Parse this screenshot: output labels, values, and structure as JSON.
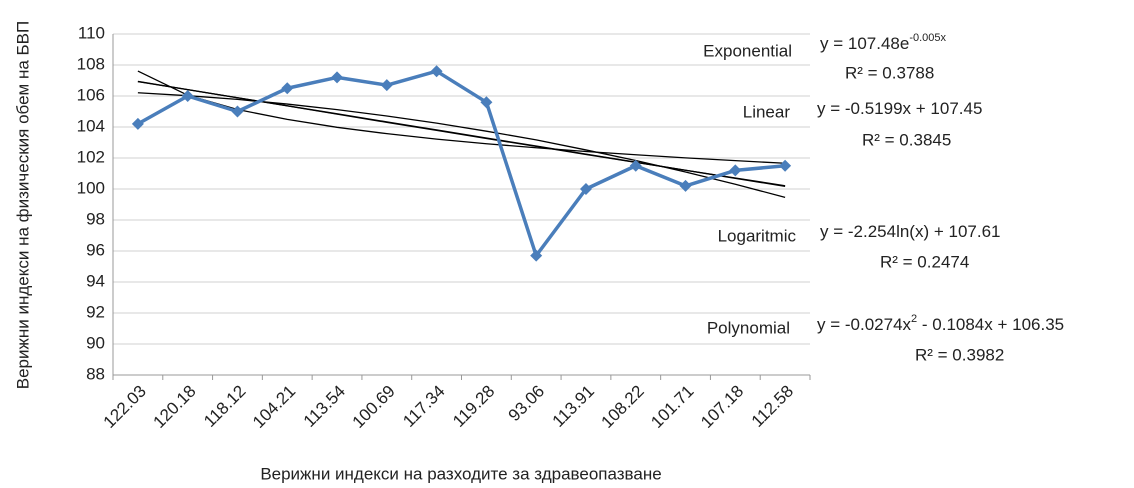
{
  "chart_data": {
    "type": "line",
    "xlabel": "Верижни индекси на разходите за здравеопазване",
    "ylabel": "Верижни индекси на физическия обем на БВП",
    "categories": [
      "122.03",
      "120.18",
      "118.12",
      "104.21",
      "113.54",
      "100.69",
      "117.34",
      "119.28",
      "93.06",
      "113.91",
      "108.22",
      "101.71",
      "107.18",
      "112.58"
    ],
    "series": [
      {
        "color": "#4a7ebb",
        "values": [
          104.2,
          106.0,
          105.0,
          106.5,
          107.2,
          106.7,
          107.6,
          105.6,
          95.7,
          100.0,
          101.5,
          100.2,
          101.2,
          101.5
        ]
      },
      {
        "name": "Exponential",
        "color": "#000000",
        "equation": [
          "y = 107.48e",
          "-0.005x"
        ],
        "r2": "R² = 0.3788",
        "values": [
          106.94,
          106.41,
          105.89,
          105.36,
          104.83,
          104.3,
          103.78,
          103.26,
          102.75,
          102.23,
          101.72,
          101.21,
          100.71,
          100.21
        ]
      },
      {
        "name": "Linear",
        "color": "#000000",
        "equation": [
          "y = -0.5199x + 107.45"
        ],
        "r2": "R² = 0.3845",
        "values": [
          106.93,
          106.41,
          105.89,
          105.37,
          104.85,
          104.33,
          103.81,
          103.29,
          102.77,
          102.25,
          101.73,
          101.21,
          100.69,
          100.17
        ]
      },
      {
        "name": "Logaritmic",
        "color": "#000000",
        "equation": [
          "y = -2.254ln(x) + 107.61"
        ],
        "r2": "R² = 0.2474",
        "values": [
          107.61,
          106.05,
          105.13,
          104.49,
          103.98,
          103.57,
          103.22,
          102.92,
          102.66,
          102.42,
          102.21,
          102.01,
          101.83,
          101.66
        ]
      },
      {
        "name": "Polynomial",
        "color": "#000000",
        "equation": [
          "y = -0.0274x",
          "2",
          " - 0.1084x + 106.35"
        ],
        "r2": "R² = 0.3982",
        "values": [
          106.21,
          106.02,
          105.78,
          105.48,
          105.12,
          104.71,
          104.25,
          103.73,
          103.17,
          102.52,
          101.84,
          101.1,
          100.31,
          99.46
        ]
      }
    ],
    "ylim": [
      88,
      110
    ],
    "yticks": [
      88,
      90,
      92,
      94,
      96,
      98,
      100,
      102,
      104,
      106,
      108,
      110
    ],
    "grid": true
  }
}
